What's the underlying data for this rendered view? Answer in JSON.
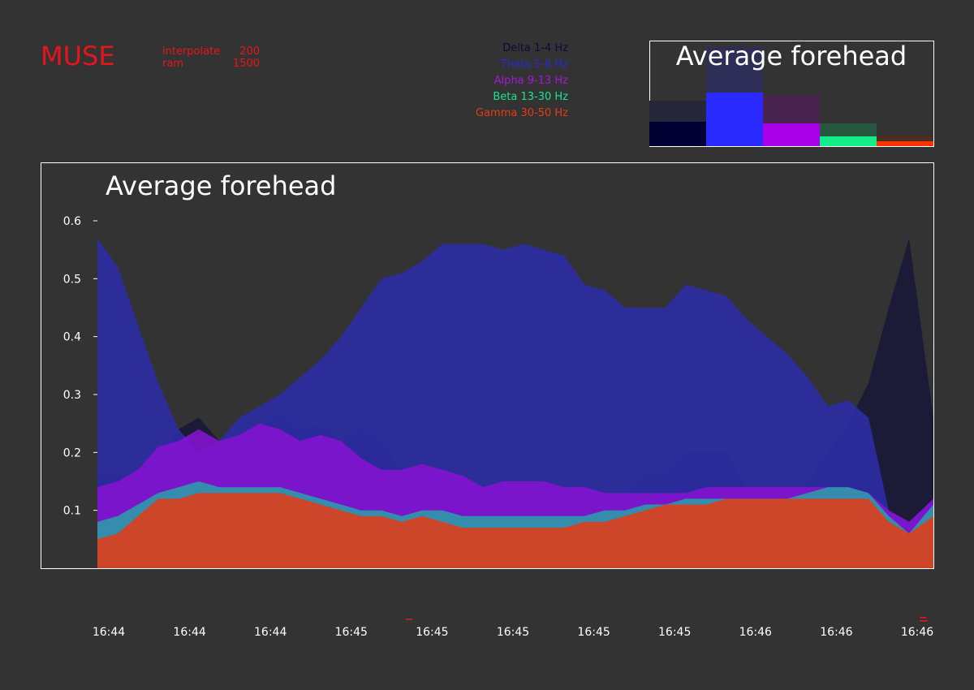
{
  "app": {
    "title": "MUSE",
    "params": [
      {
        "key": "interpolate",
        "value": "200"
      },
      {
        "key": "ram",
        "value": "1500"
      }
    ]
  },
  "legend": [
    {
      "label": "Delta 1-4 Hz",
      "color": "#0b0b3b"
    },
    {
      "label": "Theta 5-8 Hz",
      "color": "#2a2ad0"
    },
    {
      "label": "Alpha 9-13 Hz",
      "color": "#a817d8"
    },
    {
      "label": "Beta 13-30 Hz",
      "color": "#17e690"
    },
    {
      "label": "Gamma 30-50 Hz",
      "color": "#e83a14"
    }
  ],
  "bar_panel": {
    "title": "Average forehead"
  },
  "chart_data": [
    {
      "type": "bar",
      "title": "Average forehead",
      "categories": [
        "Delta 1-4 Hz",
        "Theta 5-8 Hz",
        "Alpha 9-13 Hz",
        "Beta 13-30 Hz",
        "Gamma 30-50 Hz"
      ],
      "values": [
        0.15,
        0.33,
        0.14,
        0.06,
        0.03
      ],
      "peak_values": [
        0.28,
        0.61,
        0.31,
        0.14,
        0.07
      ],
      "colors": [
        "#000033",
        "#2a2aff",
        "#aa00e8",
        "#11ee88",
        "#ff3300"
      ],
      "peak_colors": [
        "#26263b",
        "#2e2e58",
        "#47234e",
        "#26573f",
        "#4a2e25"
      ],
      "ylim": [
        0,
        0.65
      ]
    },
    {
      "type": "area",
      "title": "Average forehead",
      "xlabel": "",
      "ylabel": "",
      "ylim": [
        0,
        0.6
      ],
      "yticks": [
        0.1,
        0.2,
        0.3,
        0.4,
        0.5,
        0.6
      ],
      "xticks": [
        "16:44",
        "16:44",
        "16:44",
        "16:45",
        "16:45",
        "16:45",
        "16:45",
        "16:45",
        "16:46",
        "16:46",
        "16:46"
      ],
      "x": [
        0,
        25,
        50,
        75,
        100,
        125,
        150,
        175,
        200,
        225,
        250,
        275,
        300,
        325,
        350,
        375,
        400,
        425,
        450,
        475,
        500,
        525,
        550,
        575,
        600,
        625,
        650,
        675,
        700,
        725,
        750,
        775,
        800,
        825,
        850,
        875,
        900,
        925,
        950,
        975,
        1000,
        1030
      ],
      "series": [
        {
          "name": "Delta 1-4 Hz",
          "color": "#1a1a38",
          "values": [
            0.16,
            0.16,
            0.17,
            0.18,
            0.24,
            0.26,
            0.22,
            0.22,
            0.24,
            0.27,
            0.24,
            0.25,
            0.22,
            0.24,
            0.22,
            0.17,
            0.15,
            0.14,
            0.14,
            0.14,
            0.13,
            0.14,
            0.13,
            0.14,
            0.14,
            0.13,
            0.13,
            0.16,
            0.16,
            0.2,
            0.2,
            0.2,
            0.14,
            0.13,
            0.13,
            0.15,
            0.2,
            0.25,
            0.32,
            0.45,
            0.57,
            0.26
          ]
        },
        {
          "name": "Theta 5-8 Hz",
          "color": "#2c2ca8",
          "values": [
            0.57,
            0.52,
            0.42,
            0.32,
            0.24,
            0.2,
            0.22,
            0.26,
            0.28,
            0.3,
            0.33,
            0.36,
            0.4,
            0.45,
            0.5,
            0.51,
            0.53,
            0.56,
            0.56,
            0.56,
            0.55,
            0.56,
            0.55,
            0.54,
            0.49,
            0.48,
            0.45,
            0.45,
            0.45,
            0.49,
            0.48,
            0.47,
            0.43,
            0.4,
            0.37,
            0.33,
            0.28,
            0.29,
            0.26,
            0.1,
            0.08,
            0.12
          ]
        },
        {
          "name": "Alpha 9-13 Hz",
          "color": "#8512d2",
          "values": [
            0.14,
            0.15,
            0.17,
            0.21,
            0.22,
            0.24,
            0.22,
            0.23,
            0.25,
            0.24,
            0.22,
            0.23,
            0.22,
            0.19,
            0.17,
            0.17,
            0.18,
            0.17,
            0.16,
            0.14,
            0.15,
            0.15,
            0.15,
            0.14,
            0.14,
            0.13,
            0.13,
            0.13,
            0.13,
            0.13,
            0.14,
            0.14,
            0.14,
            0.14,
            0.14,
            0.14,
            0.14,
            0.14,
            0.13,
            0.1,
            0.08,
            0.12
          ]
        },
        {
          "name": "Beta 13-30 Hz",
          "color": "#2a9ea8",
          "values": [
            0.08,
            0.09,
            0.11,
            0.13,
            0.14,
            0.15,
            0.14,
            0.14,
            0.14,
            0.14,
            0.13,
            0.12,
            0.11,
            0.1,
            0.1,
            0.09,
            0.1,
            0.1,
            0.09,
            0.09,
            0.09,
            0.09,
            0.09,
            0.09,
            0.09,
            0.1,
            0.1,
            0.11,
            0.11,
            0.12,
            0.12,
            0.12,
            0.12,
            0.12,
            0.12,
            0.13,
            0.14,
            0.14,
            0.13,
            0.09,
            0.06,
            0.11
          ]
        },
        {
          "name": "Gamma 30-50 Hz",
          "color": "#e23c18",
          "values": [
            0.05,
            0.06,
            0.09,
            0.12,
            0.12,
            0.13,
            0.13,
            0.13,
            0.13,
            0.13,
            0.12,
            0.11,
            0.1,
            0.09,
            0.09,
            0.08,
            0.09,
            0.08,
            0.07,
            0.07,
            0.07,
            0.07,
            0.07,
            0.07,
            0.08,
            0.08,
            0.09,
            0.1,
            0.11,
            0.11,
            0.11,
            0.12,
            0.12,
            0.12,
            0.12,
            0.12,
            0.12,
            0.12,
            0.12,
            0.08,
            0.06,
            0.09
          ]
        }
      ]
    }
  ]
}
